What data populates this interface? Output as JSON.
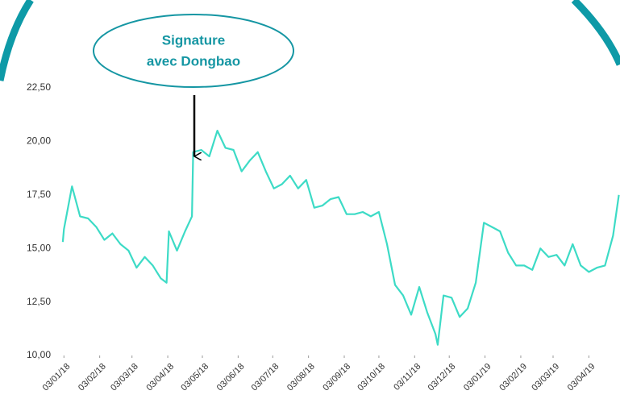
{
  "chart_data": {
    "type": "line",
    "annotation": [
      "Signature",
      "avec Dongbao"
    ],
    "x": [
      "2018-01-02",
      "2018-01-03",
      "2018-01-10",
      "2018-01-17",
      "2018-01-24",
      "2018-01-31",
      "2018-02-07",
      "2018-02-14",
      "2018-02-21",
      "2018-02-28",
      "2018-03-07",
      "2018-03-14",
      "2018-03-21",
      "2018-03-28",
      "2018-04-02",
      "2018-04-04",
      "2018-04-11",
      "2018-04-18",
      "2018-04-24",
      "2018-04-25",
      "2018-05-02",
      "2018-05-09",
      "2018-05-16",
      "2018-05-23",
      "2018-05-30",
      "2018-06-06",
      "2018-06-13",
      "2018-06-20",
      "2018-06-27",
      "2018-07-04",
      "2018-07-11",
      "2018-07-18",
      "2018-07-25",
      "2018-08-01",
      "2018-08-08",
      "2018-08-15",
      "2018-08-22",
      "2018-08-29",
      "2018-09-05",
      "2018-09-12",
      "2018-09-19",
      "2018-09-26",
      "2018-10-03",
      "2018-10-10",
      "2018-10-17",
      "2018-10-24",
      "2018-10-31",
      "2018-11-07",
      "2018-11-14",
      "2018-11-21",
      "2018-11-23",
      "2018-11-28",
      "2018-12-05",
      "2018-12-12",
      "2018-12-19",
      "2018-12-26",
      "2019-01-02",
      "2019-01-09",
      "2019-01-16",
      "2019-01-23",
      "2019-01-30",
      "2019-02-06",
      "2019-02-13",
      "2019-02-20",
      "2019-02-27",
      "2019-03-06",
      "2019-03-13",
      "2019-03-20",
      "2019-03-27",
      "2019-04-03",
      "2019-04-10",
      "2019-04-17",
      "2019-04-24",
      "2019-04-29"
    ],
    "series": [
      {
        "color": "#3ddbc6",
        "values": [
          15.3,
          15.9,
          17.9,
          16.5,
          16.4,
          16.0,
          15.4,
          15.7,
          15.2,
          14.9,
          14.1,
          14.6,
          14.2,
          13.6,
          13.4,
          15.8,
          14.9,
          15.8,
          16.5,
          19.5,
          19.6,
          19.3,
          20.5,
          19.7,
          19.6,
          18.6,
          19.1,
          19.5,
          18.6,
          17.8,
          18.0,
          18.4,
          17.8,
          18.2,
          16.9,
          17.0,
          17.3,
          17.4,
          16.6,
          16.6,
          16.7,
          16.5,
          16.7,
          15.2,
          13.3,
          12.8,
          11.9,
          13.2,
          12.0,
          11.0,
          10.5,
          12.8,
          12.7,
          11.8,
          12.2,
          13.4,
          16.2,
          16.0,
          15.8,
          14.8,
          14.2,
          14.2,
          14.0,
          15.0,
          14.6,
          14.7,
          14.2,
          15.2,
          14.2,
          13.9,
          14.1,
          14.2,
          15.6,
          17.5
        ]
      }
    ],
    "xlim": [
      "2017-12-31",
      "2019-04-30"
    ],
    "xticks": [
      {
        "value": "2018-01-03",
        "label": "03/01/18"
      },
      {
        "value": "2018-02-03",
        "label": "03/02/18"
      },
      {
        "value": "2018-03-03",
        "label": "03/03/18"
      },
      {
        "value": "2018-04-03",
        "label": "03/04/18"
      },
      {
        "value": "2018-05-03",
        "label": "03/05/18"
      },
      {
        "value": "2018-06-03",
        "label": "03/06/18"
      },
      {
        "value": "2018-07-03",
        "label": "03/07/18"
      },
      {
        "value": "2018-08-03",
        "label": "03/08/18"
      },
      {
        "value": "2018-09-03",
        "label": "03/09/18"
      },
      {
        "value": "2018-10-03",
        "label": "03/10/18"
      },
      {
        "value": "2018-11-03",
        "label": "03/11/18"
      },
      {
        "value": "2018-12-03",
        "label": "03/12/18"
      },
      {
        "value": "2019-01-03",
        "label": "03/01/19"
      },
      {
        "value": "2019-02-03",
        "label": "03/02/19"
      },
      {
        "value": "2019-03-03",
        "label": "03/03/19"
      },
      {
        "value": "2019-04-03",
        "label": "03/04/19"
      }
    ],
    "ylim": [
      10,
      22.5
    ],
    "yticks": [
      {
        "value": 10,
        "label": "10,00"
      },
      {
        "value": 12.5,
        "label": "12,50"
      },
      {
        "value": 15,
        "label": "15,00"
      },
      {
        "value": 17.5,
        "label": "17,50"
      },
      {
        "value": 20,
        "label": "20,00"
      },
      {
        "value": 22.5,
        "label": "22,50"
      }
    ],
    "grid": false
  }
}
